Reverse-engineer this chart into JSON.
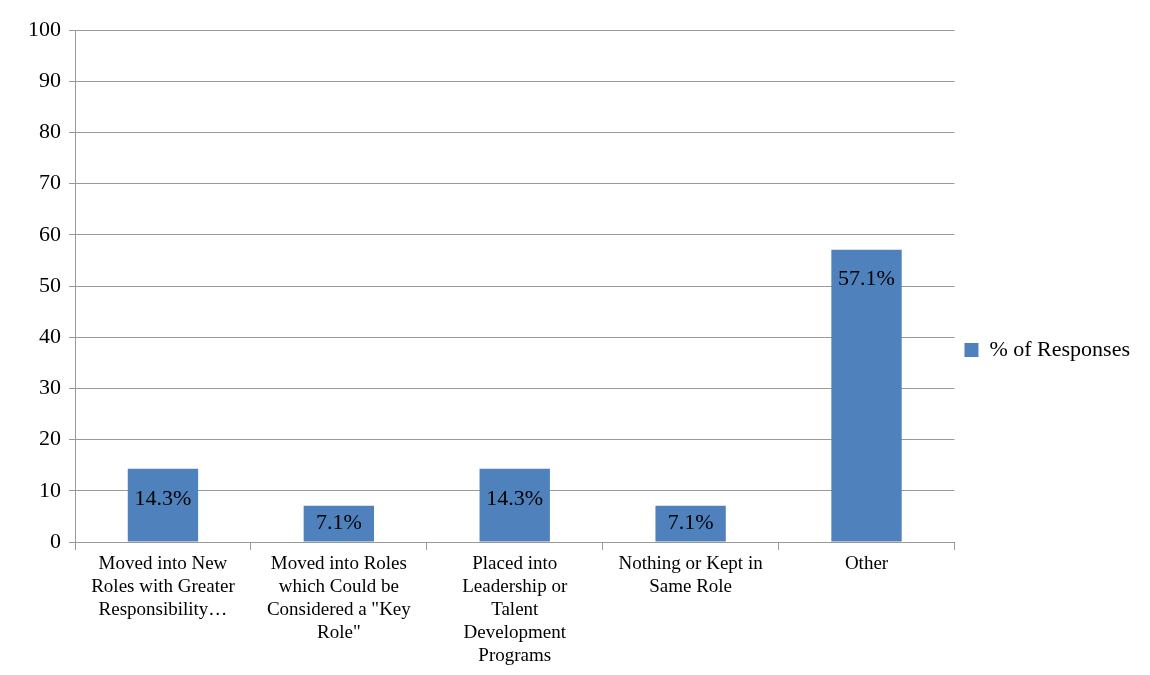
{
  "chart_data": {
    "type": "bar",
    "categories": [
      "Moved into New Roles with Greater Responsibility…",
      "Moved into Roles which Could be Considered a \"Key Role\"",
      "Placed into Leadership or Talent Development Programs",
      "Nothing or Kept in Same Role",
      "Other"
    ],
    "series": [
      {
        "name": "% of Responses",
        "color": "#4f81bd",
        "values": [
          14.3,
          7.1,
          14.3,
          7.1,
          57.1
        ],
        "value_labels": [
          "14.3%",
          "7.1%",
          "14.3%",
          "7.1%",
          "57.1%"
        ]
      }
    ],
    "ylim": [
      0,
      100
    ],
    "yticks": [
      0,
      10,
      20,
      30,
      40,
      50,
      60,
      70,
      80,
      90,
      100
    ],
    "grid": "y",
    "legend": "right"
  }
}
